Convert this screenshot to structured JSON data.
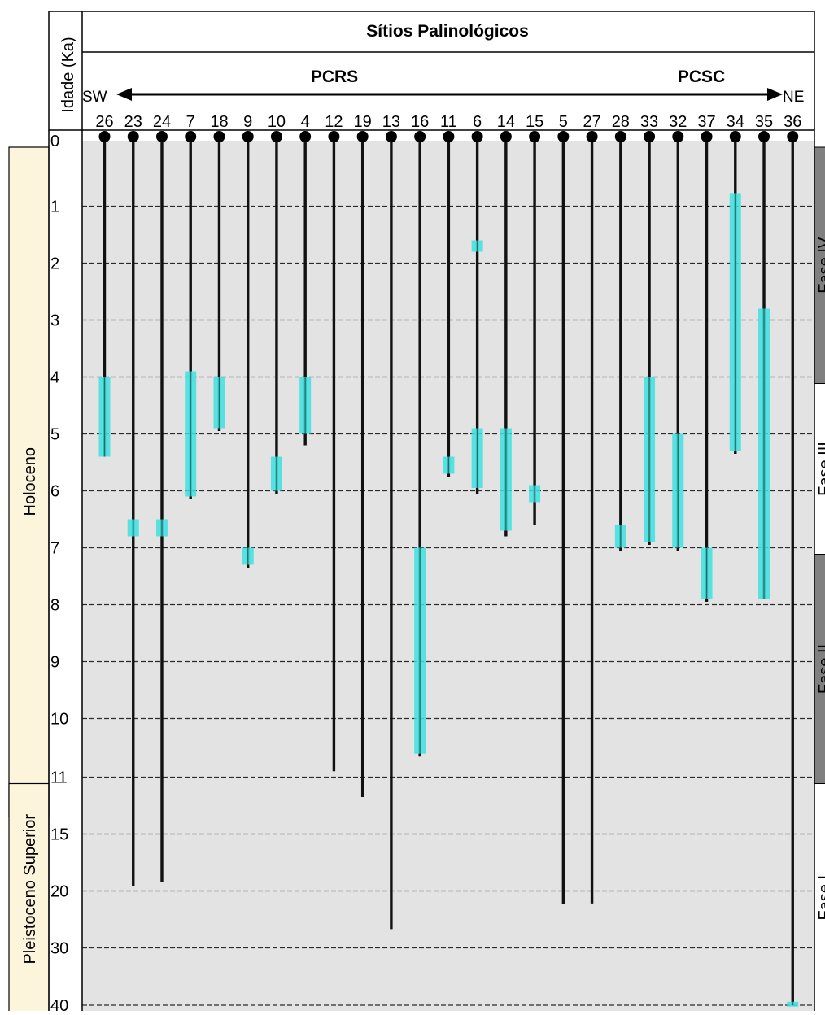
{
  "chart_data": {
    "type": "range-bar",
    "title": "Sítios Palinológicos",
    "ylabel": "Idade (Ka)",
    "direction": {
      "left": "SW",
      "right": "NE"
    },
    "regions": [
      "PCRS",
      "PCSC"
    ],
    "y_ticks": [
      "0",
      "1",
      "2",
      "3",
      "4",
      "5",
      "6",
      "7",
      "8",
      "9",
      "10",
      "11",
      "15",
      "20",
      "30",
      "40"
    ],
    "epochs": [
      {
        "label": "Holoceno",
        "from": 0,
        "to": 11,
        "color": "#fdf4dc"
      },
      {
        "label": "Pleistoceno Superior",
        "from": 11,
        "to": 40,
        "color": "#fdf4dc"
      }
    ],
    "phases": [
      {
        "label": "Fase IV",
        "from": 0,
        "to": 4,
        "color": "#808080"
      },
      {
        "label": "Fase III",
        "from": 4,
        "to": 7,
        "color": "#ffffff"
      },
      {
        "label": "Fase II",
        "from": 7,
        "to": 11,
        "color": "#808080"
      },
      {
        "label": "Fase I",
        "from": 11,
        "to": 40,
        "color": "#ffffff"
      }
    ],
    "colors": {
      "record": "#111111",
      "interval": "#40e0e0",
      "plot_bg": "#e3e3e3"
    },
    "sites": [
      {
        "site": "26",
        "record_to": 5.4,
        "intervals": [
          [
            4.0,
            5.4
          ]
        ]
      },
      {
        "site": "23",
        "record_to": 19.6,
        "intervals": [
          [
            6.5,
            6.8
          ]
        ]
      },
      {
        "site": "24",
        "record_to": 19.2,
        "intervals": [
          [
            6.5,
            6.8
          ]
        ]
      },
      {
        "site": "7",
        "record_to": 6.15,
        "intervals": [
          [
            3.9,
            6.1
          ]
        ]
      },
      {
        "site": "18",
        "record_to": 4.95,
        "intervals": [
          [
            4.0,
            4.9
          ]
        ]
      },
      {
        "site": "9",
        "record_to": 7.35,
        "intervals": [
          [
            7.0,
            7.3
          ]
        ]
      },
      {
        "site": "10",
        "record_to": 6.05,
        "intervals": [
          [
            5.4,
            6.0
          ]
        ]
      },
      {
        "site": "4",
        "record_to": 5.2,
        "intervals": [
          [
            4.0,
            5.0
          ]
        ]
      },
      {
        "site": "12",
        "record_to": 10.9,
        "intervals": []
      },
      {
        "site": "19",
        "record_to": 12.4,
        "intervals": []
      },
      {
        "site": "13",
        "record_to": 26.7,
        "intervals": []
      },
      {
        "site": "16",
        "record_to": 10.65,
        "intervals": [
          [
            7.0,
            10.6
          ]
        ]
      },
      {
        "site": "11",
        "record_to": 5.75,
        "intervals": [
          [
            5.4,
            5.7
          ]
        ]
      },
      {
        "site": "6",
        "record_to": 6.05,
        "intervals": [
          [
            1.6,
            1.8
          ],
          [
            4.9,
            5.95
          ]
        ]
      },
      {
        "site": "14",
        "record_to": 6.8,
        "intervals": [
          [
            4.9,
            6.7
          ]
        ]
      },
      {
        "site": "15",
        "record_to": 6.6,
        "intervals": [
          [
            5.9,
            6.2
          ]
        ]
      },
      {
        "site": "5",
        "record_to": 22.3,
        "intervals": []
      },
      {
        "site": "27",
        "record_to": 22.2,
        "intervals": []
      },
      {
        "site": "28",
        "record_to": 7.05,
        "intervals": [
          [
            6.6,
            7.0
          ]
        ]
      },
      {
        "site": "33",
        "record_to": 6.95,
        "intervals": [
          [
            4.0,
            6.9
          ]
        ]
      },
      {
        "site": "32",
        "record_to": 7.05,
        "intervals": [
          [
            5.0,
            7.0
          ]
        ]
      },
      {
        "site": "37",
        "record_to": 7.95,
        "intervals": [
          [
            7.0,
            7.9
          ]
        ]
      },
      {
        "site": "34",
        "record_to": 5.35,
        "intervals": [
          [
            0.8,
            5.3
          ]
        ]
      },
      {
        "site": "35",
        "record_to": 7.9,
        "intervals": [
          [
            2.8,
            7.9
          ]
        ]
      },
      {
        "site": "36",
        "record_to": 40.0,
        "intervals": [
          [
            39.4,
            40.0
          ]
        ]
      }
    ]
  }
}
